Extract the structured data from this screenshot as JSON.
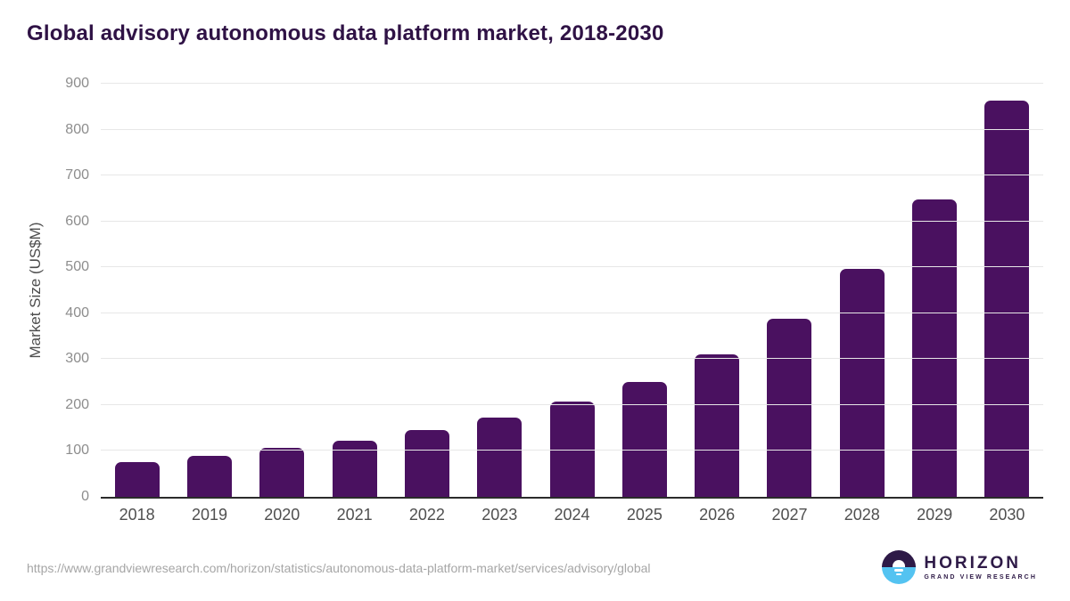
{
  "title": "Global advisory autonomous data platform market, 2018-2030",
  "chart_data": {
    "type": "bar",
    "title": "Global advisory autonomous data platform market, 2018-2030",
    "categories": [
      "2018",
      "2019",
      "2020",
      "2021",
      "2022",
      "2023",
      "2024",
      "2025",
      "2026",
      "2027",
      "2028",
      "2029",
      "2030"
    ],
    "values": [
      75,
      90,
      106,
      123,
      146,
      173,
      207,
      250,
      310,
      388,
      496,
      648,
      863
    ],
    "xlabel": "",
    "ylabel": "Market Size (US$M)",
    "ylim": [
      0,
      900
    ],
    "yticks": [
      0,
      100,
      200,
      300,
      400,
      500,
      600,
      700,
      800,
      900
    ],
    "grid": true,
    "legend": "none",
    "bar_color": "#4a1160"
  },
  "footer": {
    "source_url": "https://www.grandviewresearch.com/horizon/statistics/autonomous-data-platform-market/services/advisory/global",
    "logo": {
      "brand": "HORIZON",
      "sub_brand": "GRAND VIEW RESEARCH"
    }
  },
  "colors": {
    "title_text": "#2f1245",
    "bar": "#4a1160",
    "axis_line": "#2b2b2b",
    "gridline": "#e7e7e7",
    "ytick_label": "#8d8d8d",
    "xtick_label": "#4f4f4f",
    "axis_title": "#4d4d4d",
    "url_text": "#a6a6a6",
    "logo_purple": "#2e1a47",
    "logo_blue": "#54c3f1"
  }
}
